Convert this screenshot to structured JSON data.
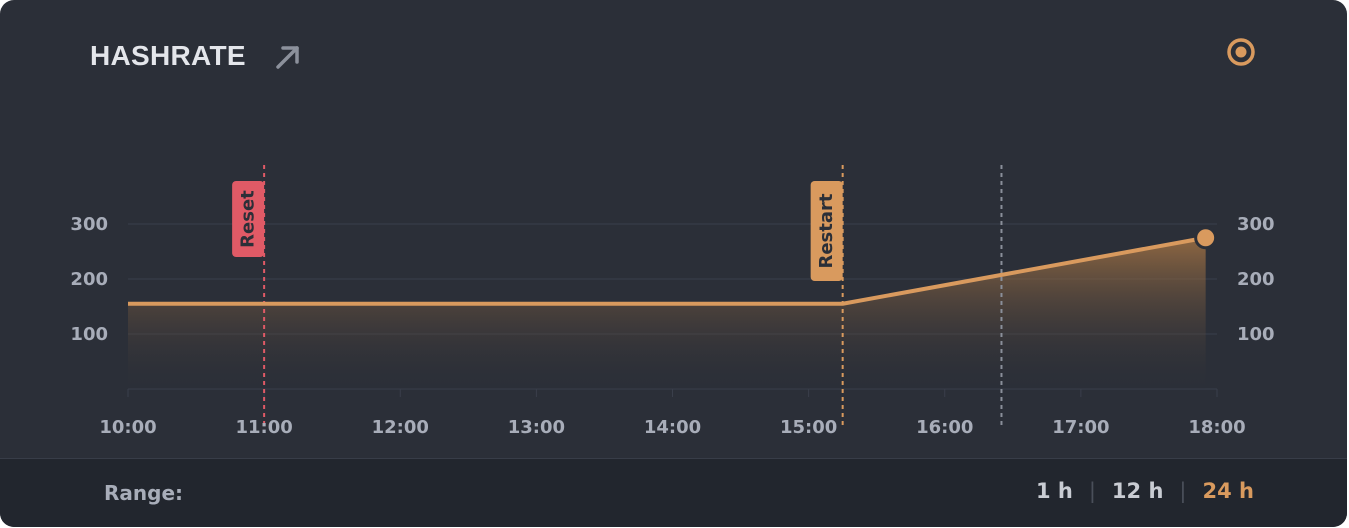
{
  "header": {
    "title": "HASHRATE",
    "link_icon": "arrow-up-right-icon",
    "status_icon": "target-ring-icon"
  },
  "colors": {
    "background": "#2b2f38",
    "footer_background": "#22262e",
    "line": "#d99a5e",
    "reset_marker": "#e05a66",
    "restart_marker": "#d99a5e",
    "grid": "#3a3f4b",
    "tick_text": "#a8adb9"
  },
  "chart_data": {
    "type": "area",
    "title": "HASHRATE",
    "xlabel": "",
    "ylabel": "",
    "x_ticks": [
      "10:00",
      "11:00",
      "12:00",
      "13:00",
      "14:00",
      "15:00",
      "16:00",
      "17:00",
      "18:00"
    ],
    "y_ticks_left": [
      "300",
      "200",
      "100"
    ],
    "y_ticks_right": [
      "300",
      "200",
      "100"
    ],
    "ylim": [
      0,
      350
    ],
    "grid": true,
    "series": [
      {
        "x": [
          "10:00",
          "15:15",
          "17:55"
        ],
        "values": [
          155,
          155,
          275
        ]
      }
    ],
    "annotations": [
      {
        "label": "Reset",
        "x": "11:00",
        "color": "#e05a66"
      },
      {
        "label": "Restart",
        "x": "15:15",
        "color": "#d99a5e"
      },
      {
        "label": "",
        "x": "16:25",
        "color": "#8a8f9a"
      }
    ]
  },
  "footer": {
    "range_label": "Range:",
    "options": [
      "1 h",
      "12 h",
      "24 h"
    ],
    "selected": "24 h"
  }
}
